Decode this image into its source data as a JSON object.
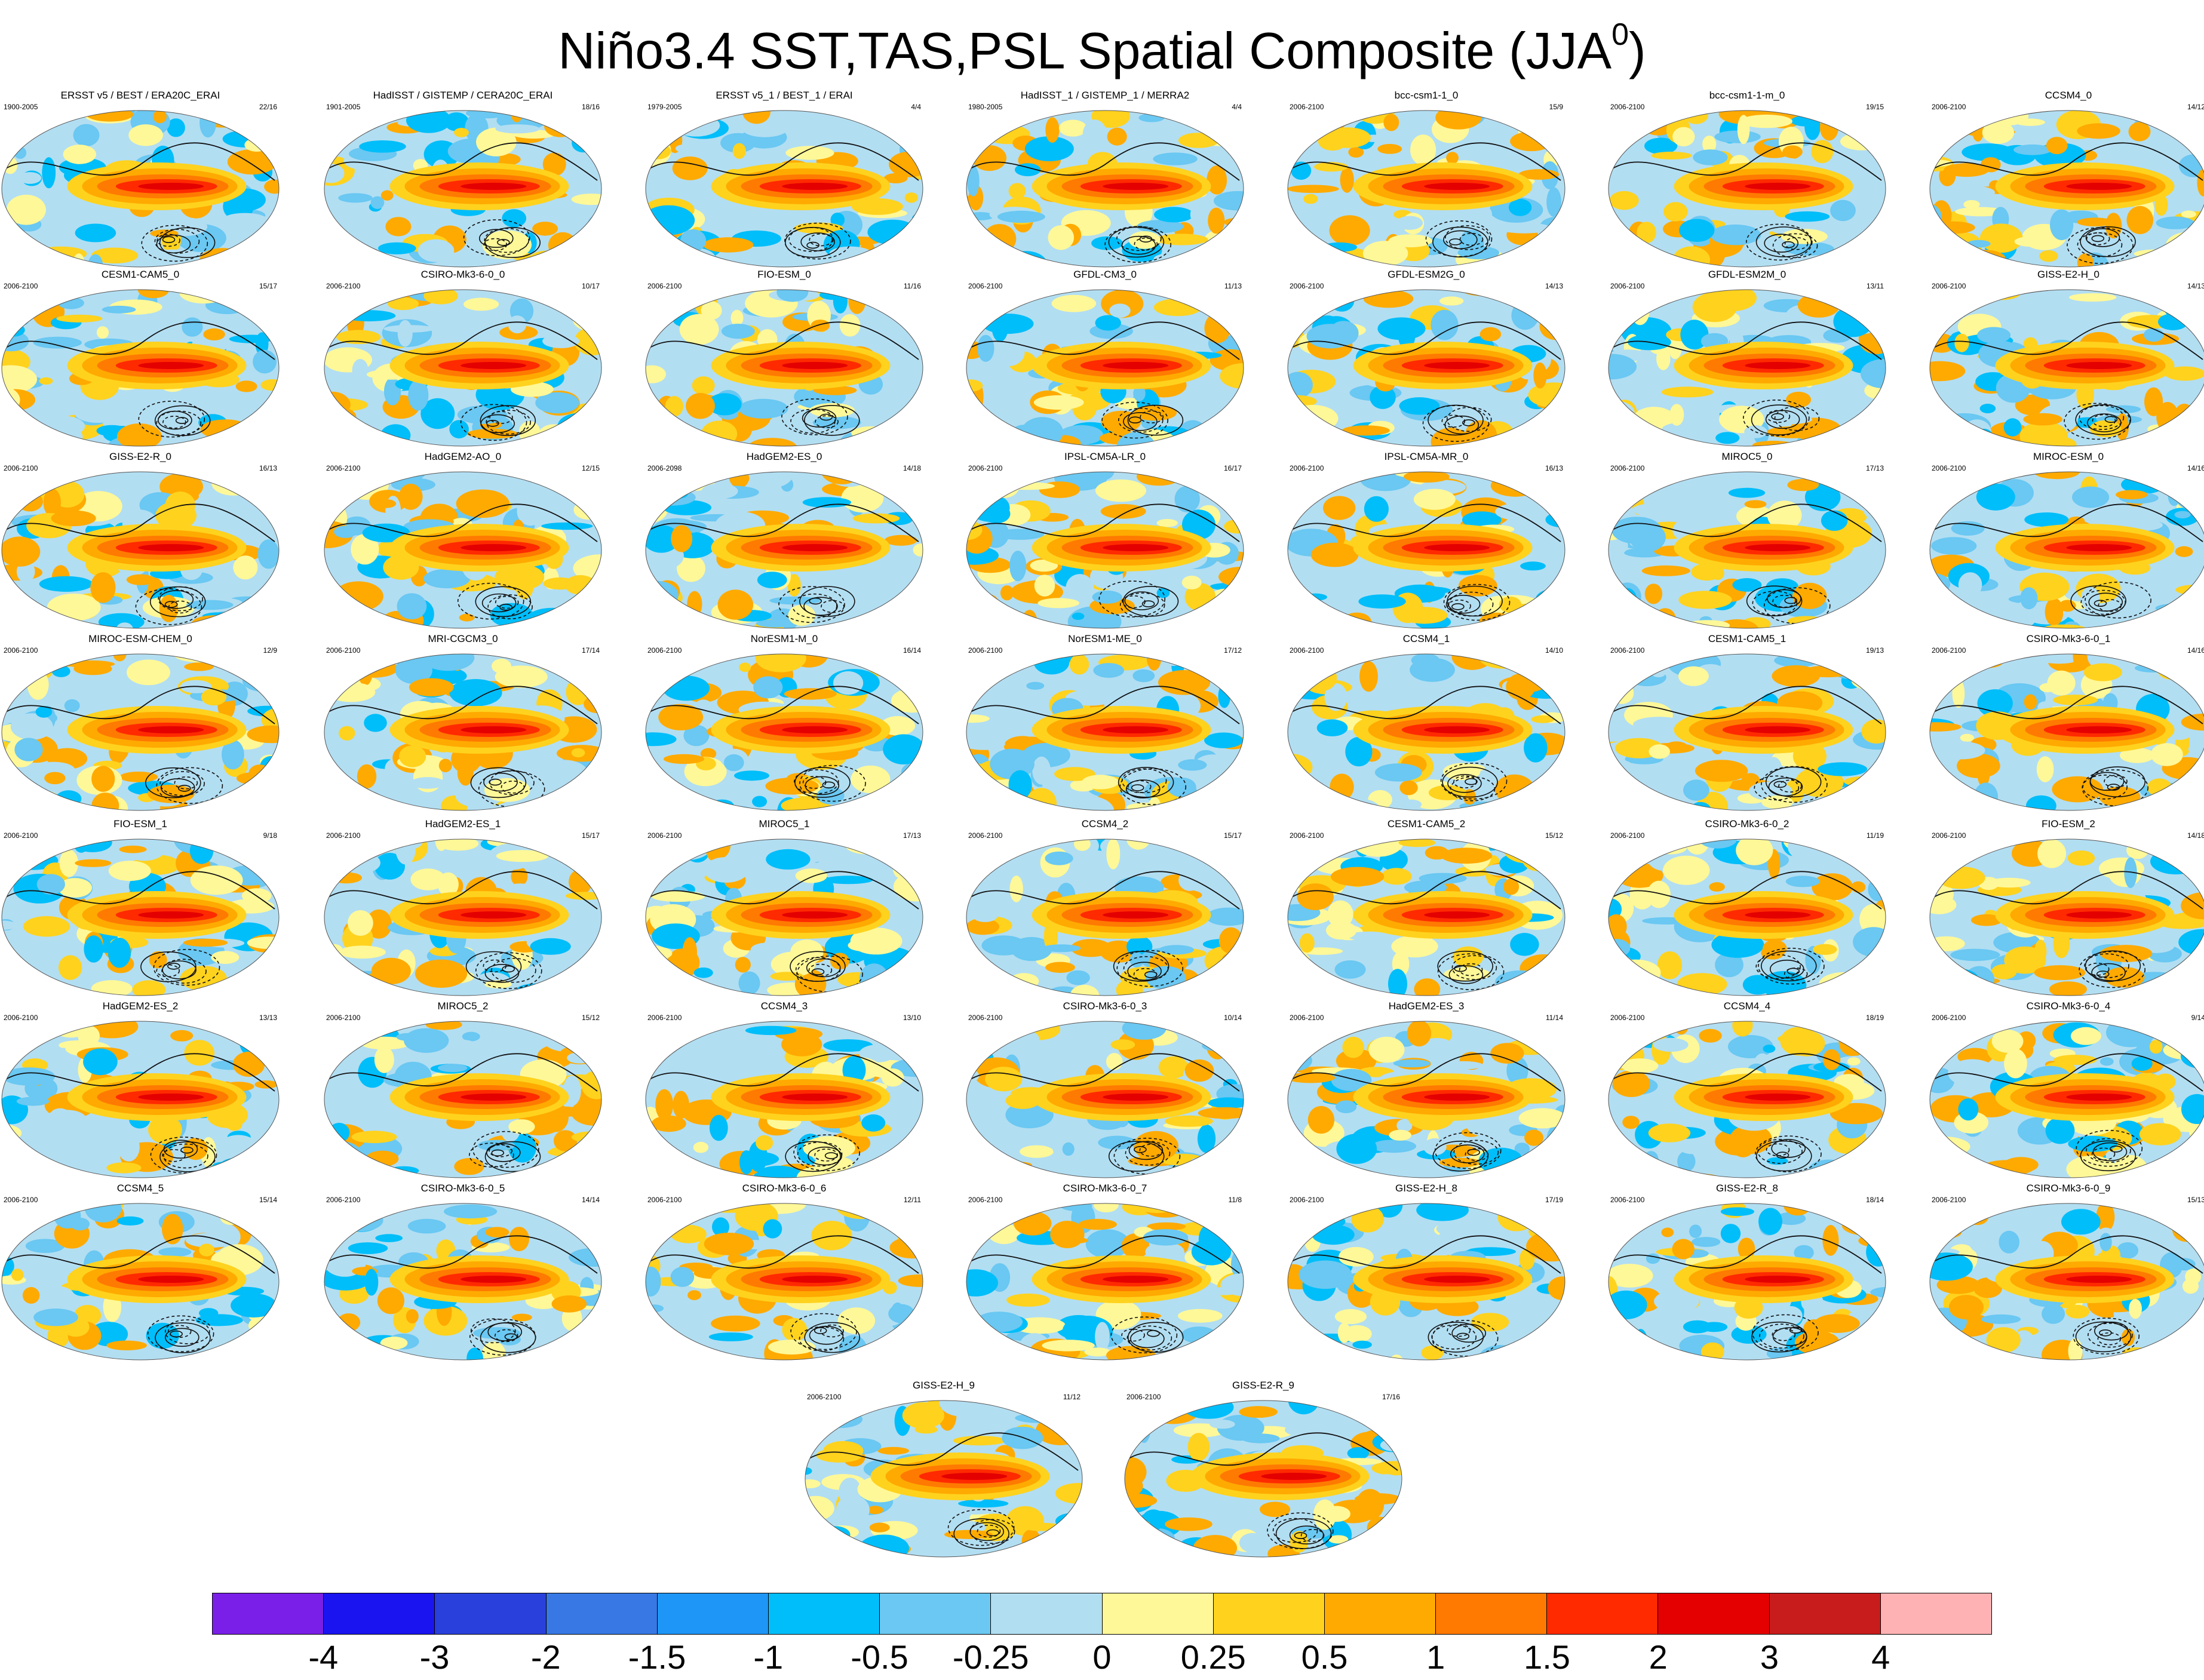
{
  "title": {
    "main": "Niño3.4 SST,TAS,PSL Spatial Composite (JJA",
    "superscript": "0",
    "close": ")"
  },
  "panels": [
    {
      "title": "ERSST v5 / BEST / ERA20C_ERAI",
      "years": "1900-2005",
      "count": "22/16"
    },
    {
      "title": "HadISST / GISTEMP / CERA20C_ERAI",
      "years": "1901-2005",
      "count": "18/16"
    },
    {
      "title": "ERSST v5_1 / BEST_1 / ERAI",
      "years": "1979-2005",
      "count": "4/4"
    },
    {
      "title": "HadISST_1 / GISTEMP_1 / MERRA2",
      "years": "1980-2005",
      "count": "4/4"
    },
    {
      "title": "bcc-csm1-1_0",
      "years": "2006-2100",
      "count": "15/9"
    },
    {
      "title": "bcc-csm1-1-m_0",
      "years": "2006-2100",
      "count": "19/15"
    },
    {
      "title": "CCSM4_0",
      "years": "2006-2100",
      "count": "14/12"
    },
    {
      "title": "CESM1-CAM5_0",
      "years": "2006-2100",
      "count": "15/17"
    },
    {
      "title": "CSIRO-Mk3-6-0_0",
      "years": "2006-2100",
      "count": "10/17"
    },
    {
      "title": "FIO-ESM_0",
      "years": "2006-2100",
      "count": "11/16"
    },
    {
      "title": "GFDL-CM3_0",
      "years": "2006-2100",
      "count": "11/13"
    },
    {
      "title": "GFDL-ESM2G_0",
      "years": "2006-2100",
      "count": "14/13"
    },
    {
      "title": "GFDL-ESM2M_0",
      "years": "2006-2100",
      "count": "13/11"
    },
    {
      "title": "GISS-E2-H_0",
      "years": "2006-2100",
      "count": "14/13"
    },
    {
      "title": "GISS-E2-R_0",
      "years": "2006-2100",
      "count": "16/13"
    },
    {
      "title": "HadGEM2-AO_0",
      "years": "2006-2100",
      "count": "12/15"
    },
    {
      "title": "HadGEM2-ES_0",
      "years": "2006-2098",
      "count": "14/18"
    },
    {
      "title": "IPSL-CM5A-LR_0",
      "years": "2006-2100",
      "count": "16/17"
    },
    {
      "title": "IPSL-CM5A-MR_0",
      "years": "2006-2100",
      "count": "16/13"
    },
    {
      "title": "MIROC5_0",
      "years": "2006-2100",
      "count": "17/13"
    },
    {
      "title": "MIROC-ESM_0",
      "years": "2006-2100",
      "count": "14/16"
    },
    {
      "title": "MIROC-ESM-CHEM_0",
      "years": "2006-2100",
      "count": "12/9"
    },
    {
      "title": "MRI-CGCM3_0",
      "years": "2006-2100",
      "count": "17/14"
    },
    {
      "title": "NorESM1-M_0",
      "years": "2006-2100",
      "count": "16/14"
    },
    {
      "title": "NorESM1-ME_0",
      "years": "2006-2100",
      "count": "17/12"
    },
    {
      "title": "CCSM4_1",
      "years": "2006-2100",
      "count": "14/10"
    },
    {
      "title": "CESM1-CAM5_1",
      "years": "2006-2100",
      "count": "19/13"
    },
    {
      "title": "CSIRO-Mk3-6-0_1",
      "years": "2006-2100",
      "count": "14/16"
    },
    {
      "title": "FIO-ESM_1",
      "years": "2006-2100",
      "count": "9/18"
    },
    {
      "title": "HadGEM2-ES_1",
      "years": "2006-2100",
      "count": "15/17"
    },
    {
      "title": "MIROC5_1",
      "years": "2006-2100",
      "count": "17/13"
    },
    {
      "title": "CCSM4_2",
      "years": "2006-2100",
      "count": "15/17"
    },
    {
      "title": "CESM1-CAM5_2",
      "years": "2006-2100",
      "count": "15/12"
    },
    {
      "title": "CSIRO-Mk3-6-0_2",
      "years": "2006-2100",
      "count": "11/19"
    },
    {
      "title": "FIO-ESM_2",
      "years": "2006-2100",
      "count": "14/18"
    },
    {
      "title": "HadGEM2-ES_2",
      "years": "2006-2100",
      "count": "13/13"
    },
    {
      "title": "MIROC5_2",
      "years": "2006-2100",
      "count": "15/12"
    },
    {
      "title": "CCSM4_3",
      "years": "2006-2100",
      "count": "13/10"
    },
    {
      "title": "CSIRO-Mk3-6-0_3",
      "years": "2006-2100",
      "count": "10/14"
    },
    {
      "title": "HadGEM2-ES_3",
      "years": "2006-2100",
      "count": "11/14"
    },
    {
      "title": "CCSM4_4",
      "years": "2006-2100",
      "count": "18/19"
    },
    {
      "title": "CSIRO-Mk3-6-0_4",
      "years": "2006-2100",
      "count": "9/14"
    },
    {
      "title": "CCSM4_5",
      "years": "2006-2100",
      "count": "15/14"
    },
    {
      "title": "CSIRO-Mk3-6-0_5",
      "years": "2006-2100",
      "count": "14/14"
    },
    {
      "title": "CSIRO-Mk3-6-0_6",
      "years": "2006-2100",
      "count": "12/11"
    },
    {
      "title": "CSIRO-Mk3-6-0_7",
      "years": "2006-2100",
      "count": "11/8"
    },
    {
      "title": "GISS-E2-H_8",
      "years": "2006-2100",
      "count": "17/19"
    },
    {
      "title": "GISS-E2-R_8",
      "years": "2006-2100",
      "count": "18/14"
    },
    {
      "title": "CSIRO-Mk3-6-0_9",
      "years": "2006-2100",
      "count": "15/13"
    },
    {
      "title": "GISS-E2-H_9",
      "years": "2006-2100",
      "count": "11/12"
    },
    {
      "title": "GISS-E2-R_9",
      "years": "2006-2100",
      "count": "17/16"
    }
  ],
  "colorbar": {
    "colors": [
      "#7a1fe8",
      "#1a14f0",
      "#2a40dc",
      "#3878e4",
      "#1e96f7",
      "#00befa",
      "#6ac8f2",
      "#b2def2",
      "#fff898",
      "#ffd21e",
      "#ffaa00",
      "#ff7a00",
      "#ff2a00",
      "#e40000",
      "#c81c1c",
      "#ffb2b4"
    ],
    "labels": [
      "-4",
      "-3",
      "-2",
      "-1.5",
      "-1",
      "-0.5",
      "-0.25",
      "0",
      "0.25",
      "0.5",
      "1",
      "1.5",
      "2",
      "3",
      "4"
    ]
  }
}
